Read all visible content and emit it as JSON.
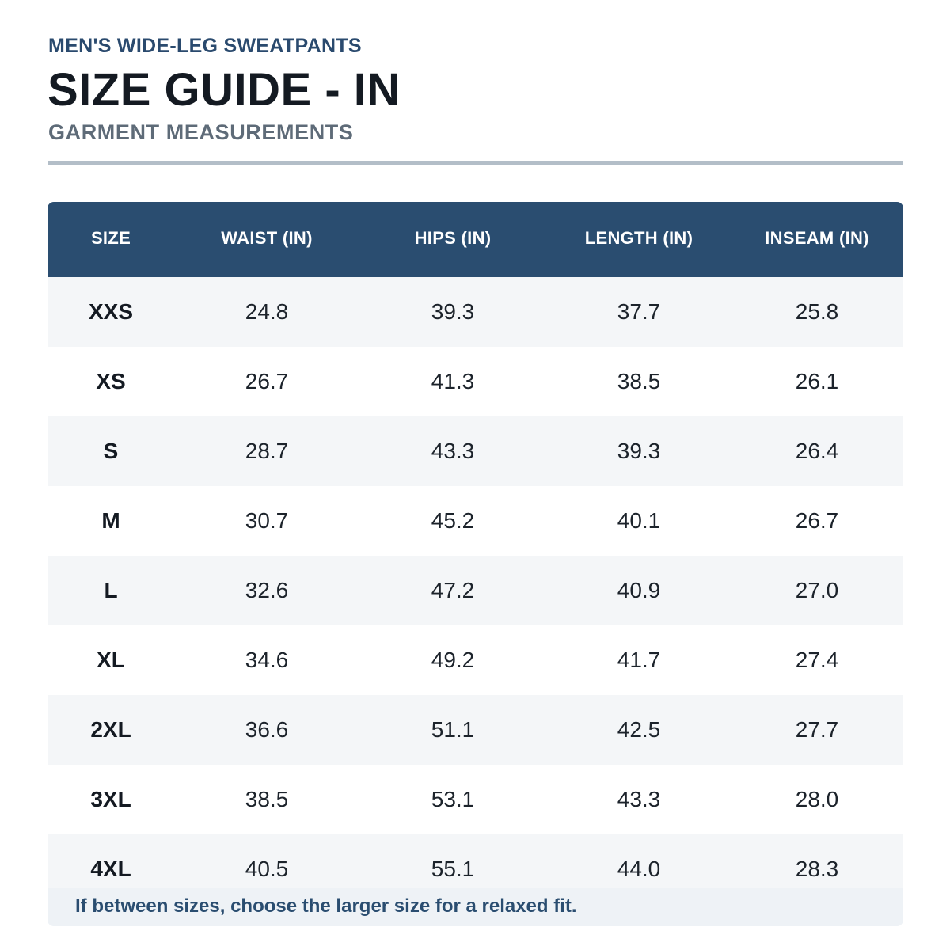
{
  "header": {
    "eyebrow": "MEN'S WIDE-LEG SWEATPANTS",
    "title": "SIZE GUIDE - IN",
    "subtitle": "GARMENT MEASUREMENTS"
  },
  "colors": {
    "header_bg": "#2a4d70",
    "accent_text": "#2a4a6e",
    "divider": "#b3bec8",
    "row_alt": "#f4f6f8"
  },
  "table": {
    "columns": [
      "SIZE",
      "WAIST (IN)",
      "HIPS (IN)",
      "LENGTH (IN)",
      "INSEAM (IN)"
    ],
    "rows": [
      [
        "XXS",
        "24.8",
        "39.3",
        "37.7",
        "25.8"
      ],
      [
        "XS",
        "26.7",
        "41.3",
        "38.5",
        "26.1"
      ],
      [
        "S",
        "28.7",
        "43.3",
        "39.3",
        "26.4"
      ],
      [
        "M",
        "30.7",
        "45.2",
        "40.1",
        "26.7"
      ],
      [
        "L",
        "32.6",
        "47.2",
        "40.9",
        "27.0"
      ],
      [
        "XL",
        "34.6",
        "49.2",
        "41.7",
        "27.4"
      ],
      [
        "2XL",
        "36.6",
        "51.1",
        "42.5",
        "27.7"
      ],
      [
        "3XL",
        "38.5",
        "53.1",
        "43.3",
        "28.0"
      ],
      [
        "4XL",
        "40.5",
        "55.1",
        "44.0",
        "28.3"
      ]
    ]
  },
  "note": {
    "text": "If between sizes, choose the larger size for a relaxed fit."
  }
}
